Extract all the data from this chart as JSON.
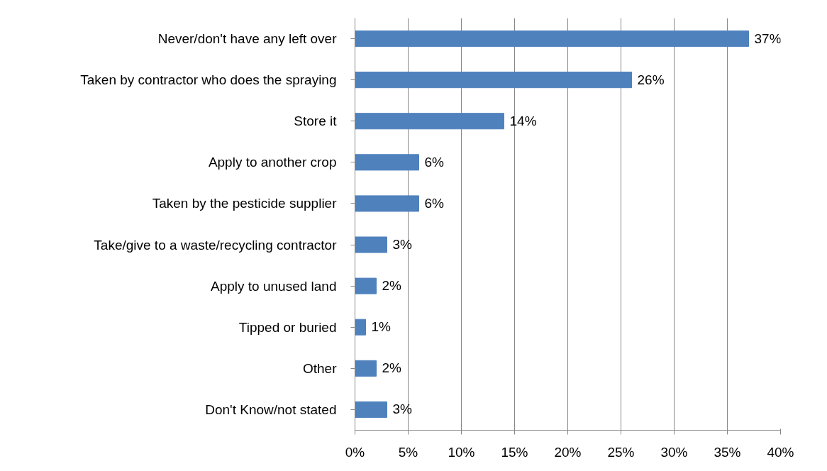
{
  "chart_data": {
    "type": "bar",
    "orientation": "horizontal",
    "categories": [
      "Never/don't have any left over",
      "Taken by contractor who does the spraying",
      "Store it",
      "Apply to another crop",
      "Taken by the pesticide supplier",
      "Take/give to a waste/recycling contractor",
      "Apply to unused land",
      "Tipped or buried",
      "Other",
      "Don't Know/not stated"
    ],
    "values": [
      37,
      26,
      14,
      6,
      6,
      3,
      2,
      1,
      2,
      3
    ],
    "value_labels": [
      "37%",
      "26%",
      "14%",
      "6%",
      "6%",
      "3%",
      "2%",
      "1%",
      "2%",
      "3%"
    ],
    "color": "#4f81bd",
    "xlim": [
      0,
      40
    ],
    "xticks": [
      {
        "value": 0,
        "label": "0%"
      },
      {
        "value": 5,
        "label": "5%"
      },
      {
        "value": 10,
        "label": "10%"
      },
      {
        "value": 15,
        "label": "15%"
      },
      {
        "value": 20,
        "label": "20%"
      },
      {
        "value": 25,
        "label": "25%"
      },
      {
        "value": 30,
        "label": "30%"
      },
      {
        "value": 35,
        "label": "35%"
      },
      {
        "value": 40,
        "label": "40%"
      }
    ],
    "grid": "x"
  }
}
